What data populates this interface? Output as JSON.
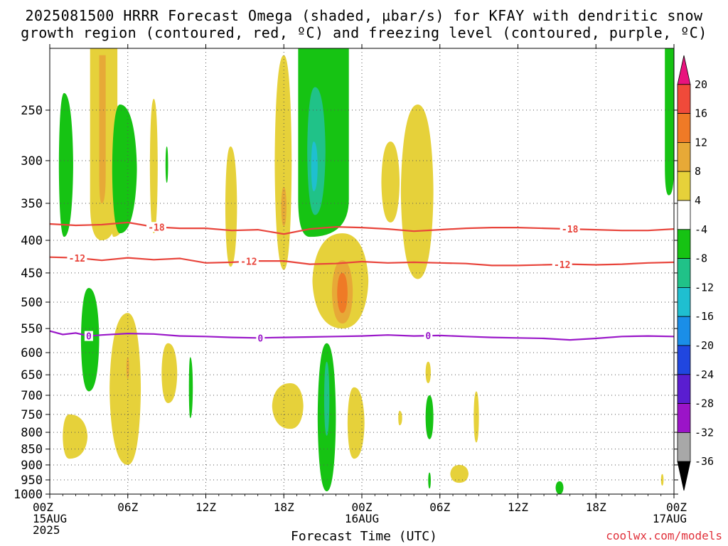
{
  "title_line1": "2025081500 HRRR Forecast Omega (shaded, μbar/s) for KFAY with dendritic snow",
  "title_line2": "growth region (contoured, red, ºC) and freezing level (contoured, purple, ºC)",
  "credit": "coolwx.com/models",
  "chart_data": {
    "type": "heatmap",
    "xlabel": "Forecast Time (UTC)",
    "ylabel": "",
    "x_range_hours": [
      0,
      48
    ],
    "y_range_hPa": [
      1000,
      200
    ],
    "y_log": true,
    "grid": true,
    "x_ticks": [
      {
        "h": 0,
        "label": "00Z",
        "sub": [
          "15AUG",
          "2025"
        ]
      },
      {
        "h": 6,
        "label": "06Z",
        "sub": []
      },
      {
        "h": 12,
        "label": "12Z",
        "sub": []
      },
      {
        "h": 18,
        "label": "18Z",
        "sub": []
      },
      {
        "h": 24,
        "label": "00Z",
        "sub": [
          "16AUG"
        ]
      },
      {
        "h": 30,
        "label": "06Z",
        "sub": []
      },
      {
        "h": 36,
        "label": "12Z",
        "sub": []
      },
      {
        "h": 42,
        "label": "18Z",
        "sub": []
      },
      {
        "h": 48,
        "label": "00Z",
        "sub": [
          "17AUG"
        ]
      }
    ],
    "y_ticks": [
      250,
      300,
      350,
      400,
      450,
      500,
      550,
      600,
      650,
      700,
      750,
      800,
      850,
      900,
      950,
      1000
    ],
    "colorbar": {
      "labels": [
        "20",
        "16",
        "12",
        "8",
        "4",
        "-4",
        "-8",
        "-12",
        "-16",
        "-20",
        "-24",
        "-28",
        "-32",
        "-36"
      ],
      "colors": [
        "#e8137e",
        "#f04a3a",
        "#ef7a26",
        "#e7a937",
        "#e6d13a",
        "#ffffff",
        "#16c313",
        "#20c288",
        "#1fbfd0",
        "#1a8ee8",
        "#2046e0",
        "#5a1dd0",
        "#9b14c8",
        "#a8a8a8",
        "#000000"
      ]
    },
    "omega_regions": [
      {
        "c": "#e6d13a",
        "t": [
          4.0,
          3.1,
          5.2
        ],
        "p": [
          200,
          400
        ],
        "kind": "bar"
      },
      {
        "c": "#e7a937",
        "t": [
          4.0,
          3.8,
          4.3
        ],
        "p": [
          205,
          350
        ],
        "kind": "bar"
      },
      {
        "c": "#e6d13a",
        "t": [
          4.9,
          4.6,
          6.3
        ],
        "p": [
          245,
          395
        ],
        "kind": "blob"
      },
      {
        "c": "#e6d13a",
        "t": [
          8.0,
          7.7,
          8.3
        ],
        "p": [
          240,
          390
        ],
        "kind": "blob"
      },
      {
        "c": "#e6d13a",
        "t": [
          13.9,
          13.5,
          14.4
        ],
        "p": [
          285,
          440
        ],
        "kind": "blob"
      },
      {
        "c": "#e6d13a",
        "t": [
          18.0,
          17.3,
          18.6
        ],
        "p": [
          205,
          445
        ],
        "kind": "blob"
      },
      {
        "c": "#e7a937",
        "t": [
          18.0,
          17.8,
          18.2
        ],
        "p": [
          330,
          380
        ],
        "kind": "blob"
      },
      {
        "c": "#e6d13a",
        "t": [
          26.2,
          25.5,
          26.9
        ],
        "p": [
          280,
          375
        ],
        "kind": "blob"
      },
      {
        "c": "#e6d13a",
        "t": [
          28.3,
          27.0,
          29.5
        ],
        "p": [
          245,
          460
        ],
        "kind": "blob"
      },
      {
        "c": "#e6d13a",
        "t": [
          22.5,
          20.2,
          24.5
        ],
        "p": [
          390,
          550
        ],
        "kind": "blob"
      },
      {
        "c": "#e7a937",
        "t": [
          22.5,
          21.7,
          23.3
        ],
        "p": [
          430,
          540
        ],
        "kind": "blob"
      },
      {
        "c": "#ef7a26",
        "t": [
          22.5,
          22.1,
          22.9
        ],
        "p": [
          450,
          520
        ],
        "kind": "blob"
      },
      {
        "c": "#e6d13a",
        "t": [
          6.0,
          4.6,
          7.0
        ],
        "p": [
          520,
          900
        ],
        "kind": "blob"
      },
      {
        "c": "#e7a937",
        "t": [
          6.0,
          5.9,
          6.1
        ],
        "p": [
          610,
          660
        ],
        "kind": "blob"
      },
      {
        "c": "#e6d13a",
        "t": [
          9.1,
          8.6,
          9.8
        ],
        "p": [
          580,
          720
        ],
        "kind": "blob"
      },
      {
        "c": "#e6d13a",
        "t": [
          1.5,
          1.0,
          2.9
        ],
        "p": [
          750,
          880
        ],
        "kind": "blob"
      },
      {
        "c": "#e6d13a",
        "t": [
          18.5,
          17.1,
          19.5
        ],
        "p": [
          670,
          790
        ],
        "kind": "blob"
      },
      {
        "c": "#e6d13a",
        "t": [
          23.4,
          22.9,
          24.2
        ],
        "p": [
          680,
          880
        ],
        "kind": "blob"
      },
      {
        "c": "#e6d13a",
        "t": [
          29.1,
          28.9,
          29.3
        ],
        "p": [
          620,
          670
        ],
        "kind": "blob"
      },
      {
        "c": "#e6d13a",
        "t": [
          26.9,
          26.8,
          27.1
        ],
        "p": [
          740,
          780
        ],
        "kind": "blob"
      },
      {
        "c": "#e6d13a",
        "t": [
          32.8,
          32.6,
          33.0
        ],
        "p": [
          690,
          830
        ],
        "kind": "blob"
      },
      {
        "c": "#e6d13a",
        "t": [
          31.5,
          30.8,
          32.2
        ],
        "p": [
          900,
          960
        ],
        "kind": "blob"
      },
      {
        "c": "#e6d13a",
        "t": [
          47.1,
          47.0,
          47.2
        ],
        "p": [
          930,
          970
        ],
        "kind": "blob"
      },
      {
        "c": "#16c313",
        "t": [
          1.1,
          0.7,
          1.8
        ],
        "p": [
          235,
          395
        ],
        "kind": "blob"
      },
      {
        "c": "#16c313",
        "t": [
          5.4,
          4.8,
          6.7
        ],
        "p": [
          245,
          390
        ],
        "kind": "blob"
      },
      {
        "c": "#16c313",
        "t": [
          9.0,
          8.9,
          9.1
        ],
        "p": [
          285,
          325
        ],
        "kind": "blob"
      },
      {
        "c": "#16c313",
        "t": [
          20.0,
          19.1,
          23.0
        ],
        "p": [
          200,
          395
        ],
        "kind": "bar"
      },
      {
        "c": "#20c288",
        "t": [
          20.4,
          19.8,
          21.2
        ],
        "p": [
          230,
          365
        ],
        "kind": "blob"
      },
      {
        "c": "#1fbfd0",
        "t": [
          20.3,
          20.1,
          20.6
        ],
        "p": [
          280,
          335
        ],
        "kind": "blob"
      },
      {
        "c": "#16c313",
        "t": [
          3.0,
          2.4,
          3.8
        ],
        "p": [
          475,
          690
        ],
        "kind": "blob"
      },
      {
        "c": "#16c313",
        "t": [
          10.8,
          10.7,
          11.0
        ],
        "p": [
          610,
          760
        ],
        "kind": "blob"
      },
      {
        "c": "#16c313",
        "t": [
          21.3,
          20.6,
          22.0
        ],
        "p": [
          580,
          990
        ],
        "kind": "blob"
      },
      {
        "c": "#20c288",
        "t": [
          21.3,
          21.1,
          21.5
        ],
        "p": [
          620,
          810
        ],
        "kind": "blob"
      },
      {
        "c": "#16c313",
        "t": [
          29.2,
          28.9,
          29.5
        ],
        "p": [
          700,
          820
        ],
        "kind": "blob"
      },
      {
        "c": "#16c313",
        "t": [
          29.2,
          29.1,
          29.3
        ],
        "p": [
          925,
          980
        ],
        "kind": "blob"
      },
      {
        "c": "#16c313",
        "t": [
          39.2,
          38.9,
          39.5
        ],
        "p": [
          955,
          1000
        ],
        "kind": "blob"
      },
      {
        "c": "#16c313",
        "t": [
          47.6,
          47.3,
          48.0
        ],
        "p": [
          200,
          340
        ],
        "kind": "bar"
      }
    ],
    "contours": [
      {
        "name": "-18",
        "color": "#e8443b",
        "labels_at": [
          8.2,
          40.0
        ],
        "points": [
          [
            0,
            377
          ],
          [
            2,
            379
          ],
          [
            4,
            378
          ],
          [
            6,
            375
          ],
          [
            8,
            381
          ],
          [
            10,
            383
          ],
          [
            12,
            383
          ],
          [
            14,
            386
          ],
          [
            16,
            385
          ],
          [
            18,
            391
          ],
          [
            20,
            384
          ],
          [
            22,
            381
          ],
          [
            24,
            382
          ],
          [
            26,
            384
          ],
          [
            28,
            387
          ],
          [
            30,
            385
          ],
          [
            32,
            383
          ],
          [
            34,
            382
          ],
          [
            36,
            382
          ],
          [
            38,
            383
          ],
          [
            40,
            384
          ],
          [
            42,
            385
          ],
          [
            44,
            386
          ],
          [
            46,
            386
          ],
          [
            48,
            384
          ]
        ]
      },
      {
        "name": "-12",
        "color": "#e8443b",
        "labels_at": [
          2.1,
          15.3,
          39.4
        ],
        "points": [
          [
            0,
            425
          ],
          [
            2,
            426
          ],
          [
            4,
            430
          ],
          [
            6,
            426
          ],
          [
            8,
            429
          ],
          [
            10,
            427
          ],
          [
            12,
            434
          ],
          [
            14,
            433
          ],
          [
            16,
            431
          ],
          [
            18,
            431
          ],
          [
            20,
            436
          ],
          [
            22,
            435
          ],
          [
            24,
            432
          ],
          [
            26,
            434
          ],
          [
            28,
            433
          ],
          [
            30,
            434
          ],
          [
            32,
            435
          ],
          [
            34,
            438
          ],
          [
            36,
            438
          ],
          [
            38,
            437
          ],
          [
            40,
            436
          ],
          [
            42,
            437
          ],
          [
            44,
            436
          ],
          [
            46,
            434
          ],
          [
            48,
            433
          ]
        ]
      },
      {
        "name": "0",
        "color": "#9a18c9",
        "labels_at": [
          3.0,
          16.2,
          29.1
        ],
        "points": [
          [
            0,
            555
          ],
          [
            1,
            562
          ],
          [
            2,
            559
          ],
          [
            3,
            565
          ],
          [
            4,
            563
          ],
          [
            6,
            560
          ],
          [
            8,
            561
          ],
          [
            10,
            565
          ],
          [
            12,
            566
          ],
          [
            14,
            568
          ],
          [
            16,
            569
          ],
          [
            18,
            568
          ],
          [
            20,
            567
          ],
          [
            22,
            566
          ],
          [
            24,
            565
          ],
          [
            26,
            563
          ],
          [
            28,
            565
          ],
          [
            30,
            564
          ],
          [
            32,
            566
          ],
          [
            34,
            568
          ],
          [
            36,
            569
          ],
          [
            38,
            570
          ],
          [
            40,
            573
          ],
          [
            42,
            570
          ],
          [
            44,
            566
          ],
          [
            46,
            565
          ],
          [
            48,
            566
          ]
        ]
      }
    ],
    "ground": {
      "p_top": 1000,
      "color": "#a0522d"
    }
  }
}
